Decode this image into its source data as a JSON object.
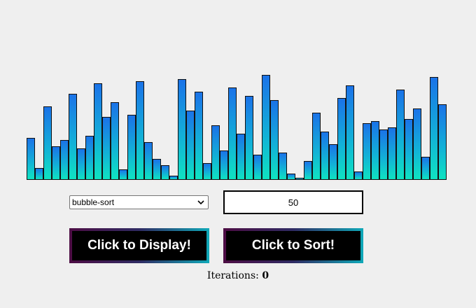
{
  "chart_data": {
    "type": "bar",
    "values": [
      60,
      17,
      105,
      48,
      57,
      123,
      45,
      63,
      138,
      90,
      111,
      15,
      93,
      141,
      54,
      30,
      21,
      6,
      144,
      99,
      126,
      24,
      78,
      42,
      132,
      66,
      120,
      36,
      150,
      114,
      39,
      9,
      3,
      27,
      96,
      69,
      51,
      117,
      135,
      12,
      81,
      84,
      72,
      75,
      129,
      87,
      102,
      33,
      147,
      108
    ],
    "xlabel": "",
    "ylabel": ""
  },
  "controls": {
    "algorithm_selected": "bubble-sort",
    "size_value": "50",
    "display_label": "Click to Display!",
    "sort_label": "Click to Sort!"
  },
  "status": {
    "iterations_label": "Iterations:",
    "iterations_value": "0"
  },
  "icons": {
    "dropdown": "chevron-down-icon"
  }
}
